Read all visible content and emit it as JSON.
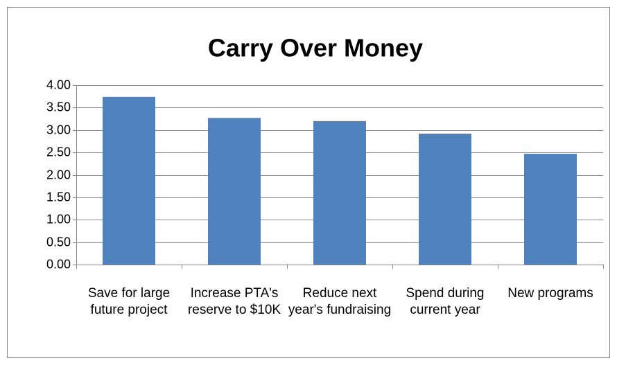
{
  "chart_data": {
    "type": "bar",
    "title": "Carry Over Money",
    "categories": [
      "Save for large future project",
      "Increase PTA's reserve to $10K",
      "Reduce next year's fundraising",
      "Spend during current year",
      "New programs"
    ],
    "values": [
      3.74,
      3.27,
      3.2,
      2.92,
      2.47
    ],
    "color": "#4f81bd",
    "ylim": [
      0,
      4
    ],
    "yticks": [
      {
        "value": 0,
        "label": "0.00"
      },
      {
        "value": 0.5,
        "label": "0.50"
      },
      {
        "value": 1,
        "label": "1.00"
      },
      {
        "value": 1.5,
        "label": "1.50"
      },
      {
        "value": 2,
        "label": "2.00"
      },
      {
        "value": 2.5,
        "label": "2.50"
      },
      {
        "value": 3,
        "label": "3.00"
      },
      {
        "value": 3.5,
        "label": "3.50"
      },
      {
        "value": 4,
        "label": "4.00"
      }
    ],
    "grid": true
  }
}
